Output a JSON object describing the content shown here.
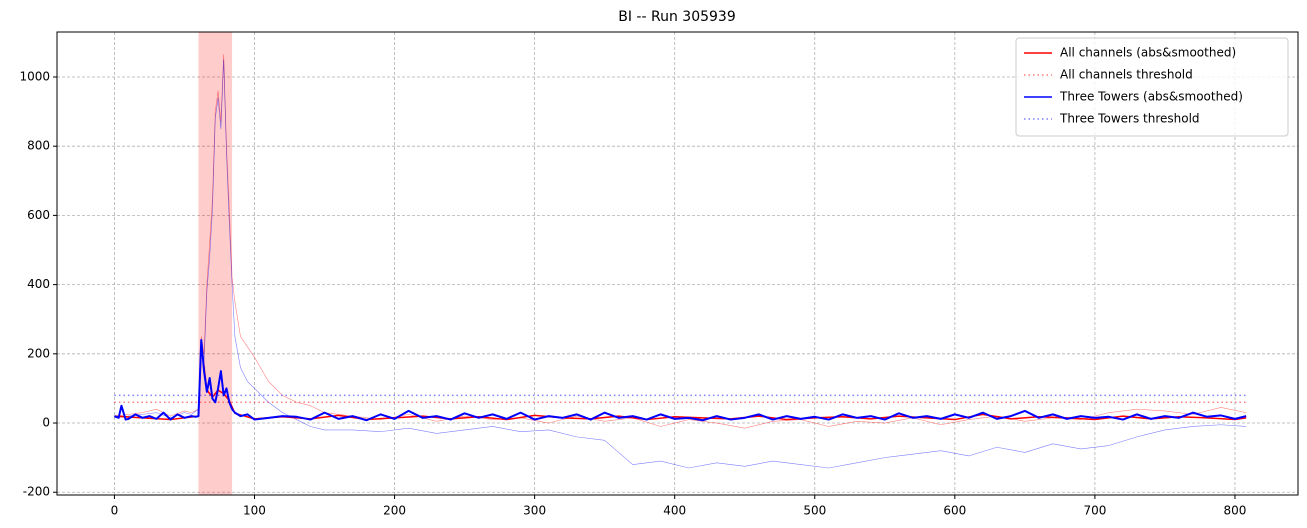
{
  "chart_data": {
    "type": "line",
    "title": "BI -- Run 305939",
    "xlim": [
      -41,
      845
    ],
    "ylim": [
      -208,
      1130
    ],
    "xticks": [
      0,
      100,
      200,
      300,
      400,
      500,
      600,
      700,
      800
    ],
    "yticks": [
      -200,
      0,
      200,
      400,
      600,
      800,
      1000
    ],
    "grid": true,
    "legend": "upper right",
    "spans": [
      {
        "x0": 60,
        "x1": 84,
        "color": "#ff0000",
        "alpha": 0.2
      }
    ],
    "series": [
      {
        "color": "#ff0000",
        "width": 0.6,
        "opacity": 0.5,
        "style": "solid",
        "x": [
          0,
          10,
          20,
          30,
          40,
          50,
          55,
          60,
          62,
          64,
          66,
          68,
          70,
          72,
          74,
          76,
          78,
          80,
          82,
          84,
          86,
          90,
          95,
          100,
          110,
          120,
          130,
          140,
          150,
          170,
          190,
          210,
          230,
          250,
          270,
          290,
          310,
          330,
          350,
          370,
          390,
          410,
          430,
          450,
          470,
          490,
          510,
          530,
          550,
          570,
          590,
          610,
          630,
          650,
          670,
          690,
          710,
          730,
          750,
          770,
          790,
          808
        ],
        "values": [
          20,
          25,
          30,
          40,
          20,
          35,
          30,
          40,
          250,
          200,
          400,
          520,
          650,
          900,
          960,
          870,
          1065,
          800,
          620,
          420,
          350,
          250,
          220,
          190,
          120,
          80,
          60,
          50,
          30,
          20,
          10,
          25,
          5,
          20,
          10,
          15,
          0,
          20,
          5,
          15,
          -10,
          10,
          0,
          -15,
          5,
          10,
          -10,
          5,
          0,
          15,
          -5,
          10,
          20,
          5,
          15,
          10,
          30,
          40,
          35,
          25,
          45,
          30
        ]
      },
      {
        "color": "#0000ff",
        "width": 0.6,
        "opacity": 0.5,
        "style": "solid",
        "x": [
          0,
          10,
          20,
          30,
          40,
          50,
          55,
          60,
          62,
          64,
          66,
          68,
          70,
          72,
          74,
          76,
          78,
          80,
          82,
          84,
          86,
          90,
          95,
          100,
          110,
          120,
          130,
          140,
          150,
          170,
          190,
          210,
          230,
          250,
          270,
          290,
          310,
          330,
          350,
          370,
          390,
          410,
          430,
          450,
          470,
          490,
          510,
          530,
          550,
          570,
          590,
          610,
          630,
          650,
          670,
          690,
          710,
          730,
          750,
          770,
          790,
          808
        ],
        "values": [
          15,
          20,
          25,
          30,
          15,
          30,
          25,
          40,
          200,
          180,
          380,
          480,
          620,
          880,
          940,
          850,
          1050,
          780,
          580,
          400,
          250,
          160,
          120,
          100,
          60,
          30,
          10,
          -10,
          -20,
          -20,
          -25,
          -15,
          -30,
          -20,
          -10,
          -25,
          -20,
          -40,
          -50,
          -120,
          -110,
          -130,
          -115,
          -125,
          -110,
          -120,
          -130,
          -115,
          -100,
          -90,
          -80,
          -95,
          -70,
          -85,
          -60,
          -75,
          -65,
          -40,
          -20,
          -10,
          -5,
          -10
        ]
      },
      {
        "name": "All channels (abs&smoothed)",
        "color": "#ff0000",
        "width": 1.5,
        "opacity": 1,
        "style": "solid",
        "x": [
          0,
          20,
          40,
          60,
          62,
          66,
          70,
          74,
          78,
          82,
          86,
          100,
          120,
          140,
          160,
          180,
          200,
          220,
          240,
          260,
          280,
          300,
          320,
          340,
          360,
          380,
          400,
          420,
          440,
          460,
          480,
          500,
          520,
          540,
          560,
          580,
          600,
          620,
          640,
          660,
          680,
          700,
          720,
          740,
          760,
          780,
          800,
          808
        ],
        "values": [
          20,
          15,
          10,
          20,
          230,
          95,
          75,
          95,
          85,
          65,
          28,
          12,
          18,
          12,
          22,
          10,
          15,
          20,
          12,
          18,
          10,
          22,
          15,
          12,
          20,
          10,
          18,
          15,
          12,
          20,
          10,
          15,
          18,
          12,
          20,
          15,
          10,
          25,
          12,
          18,
          15,
          10,
          20,
          12,
          18,
          15,
          10,
          15
        ]
      },
      {
        "name": "All channels threshold",
        "color": "#ff0000",
        "width": 1.5,
        "opacity": 0.5,
        "style": "dotted",
        "x": [
          0,
          808
        ],
        "values": [
          60,
          60
        ]
      },
      {
        "name": "Three Towers (abs&smoothed)",
        "color": "#0000ff",
        "width": 2,
        "opacity": 1,
        "style": "solid",
        "x": [
          0,
          3,
          5,
          8,
          10,
          15,
          20,
          25,
          30,
          35,
          40,
          45,
          50,
          55,
          58,
          60,
          62,
          64,
          66,
          68,
          70,
          72,
          74,
          76,
          78,
          80,
          82,
          84,
          86,
          90,
          95,
          100,
          110,
          120,
          130,
          140,
          150,
          160,
          170,
          180,
          190,
          200,
          210,
          220,
          230,
          240,
          250,
          260,
          270,
          280,
          290,
          300,
          310,
          320,
          330,
          340,
          350,
          360,
          370,
          380,
          390,
          400,
          410,
          420,
          430,
          440,
          450,
          460,
          470,
          480,
          490,
          500,
          510,
          520,
          530,
          540,
          550,
          560,
          570,
          580,
          590,
          600,
          610,
          620,
          630,
          640,
          650,
          660,
          670,
          680,
          690,
          700,
          710,
          720,
          730,
          740,
          750,
          760,
          770,
          780,
          790,
          800,
          808
        ],
        "values": [
          20,
          15,
          50,
          10,
          12,
          25,
          15,
          20,
          12,
          30,
          10,
          25,
          15,
          20,
          18,
          20,
          240,
          150,
          90,
          130,
          70,
          60,
          100,
          150,
          80,
          100,
          60,
          40,
          30,
          20,
          25,
          10,
          15,
          20,
          18,
          10,
          30,
          12,
          20,
          8,
          25,
          12,
          35,
          15,
          20,
          10,
          28,
          15,
          25,
          12,
          30,
          10,
          20,
          15,
          25,
          10,
          30,
          15,
          20,
          10,
          25,
          12,
          15,
          8,
          20,
          10,
          15,
          25,
          10,
          20,
          12,
          18,
          10,
          25,
          15,
          20,
          10,
          28,
          15,
          20,
          12,
          25,
          15,
          30,
          12,
          20,
          35,
          15,
          25,
          12,
          20,
          15,
          18,
          10,
          25,
          12,
          20,
          15,
          30,
          18,
          22,
          12,
          20
        ]
      },
      {
        "name": "Three Towers threshold",
        "color": "#0000ff",
        "width": 1.5,
        "opacity": 0.5,
        "style": "dotted",
        "x": [
          0,
          808
        ],
        "values": [
          80,
          80
        ]
      }
    ]
  }
}
